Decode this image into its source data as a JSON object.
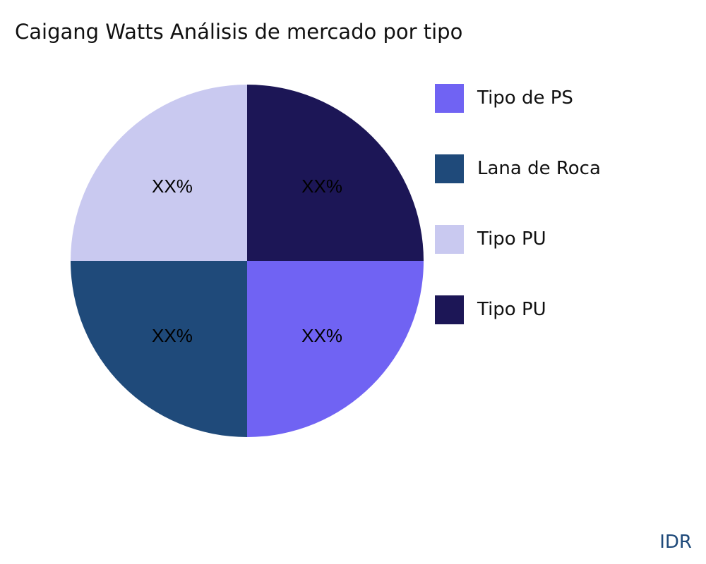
{
  "chart_data": {
    "type": "pie",
    "title": "Caigang Watts Análisis de mercado por tipo",
    "slices": [
      {
        "name": "Tipo de PS",
        "value": 25,
        "label": "XX%",
        "color": "#7063f3"
      },
      {
        "name": "Lana de Roca",
        "value": 25,
        "label": "XX%",
        "color": "#1f4a7a"
      },
      {
        "name": "Tipo PU",
        "value": 25,
        "label": "XX%",
        "color": "#c9c9f0"
      },
      {
        "name": "Tipo PU",
        "value": 25,
        "label": "XX%",
        "color": "#1c1656"
      }
    ],
    "legend_position": "right"
  },
  "brand": "IDR"
}
